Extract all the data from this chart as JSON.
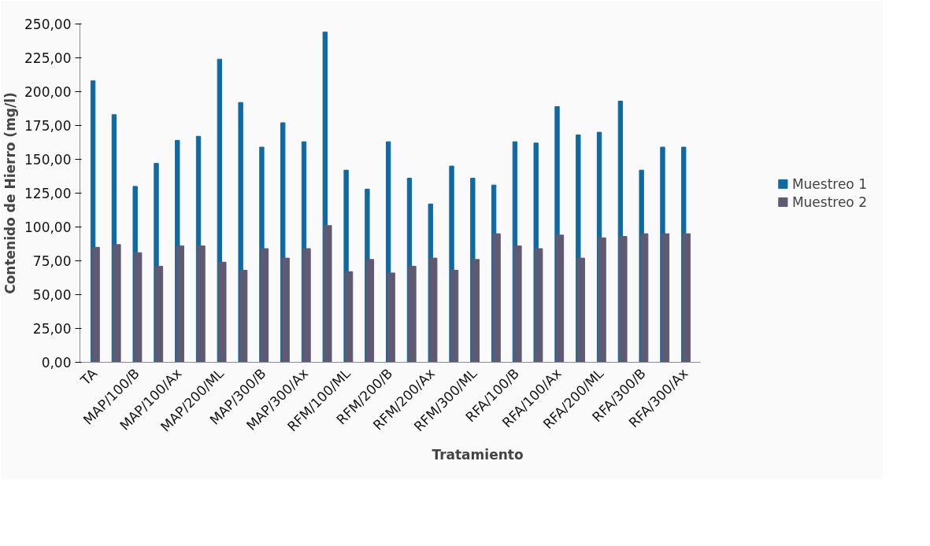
{
  "chart_data": {
    "type": "bar",
    "xlabel": "Tratamiento",
    "ylabel": "Contenido de Hierro (mg/l)",
    "categories": [
      "TA",
      null,
      "MAP/100/B",
      null,
      "MAP/100/Ax",
      null,
      "MAP/200/ML",
      null,
      "MAP/300/B",
      null,
      "MAP/300/Ax",
      null,
      "RFM/100/ML",
      null,
      "RFM/200/B",
      null,
      "RFM/200/Ax",
      null,
      "RFM/300/ML",
      null,
      "RFA/100/B",
      null,
      "RFA/100/Ax",
      null,
      "RFA/200/ML",
      null,
      "RFA/300/B",
      null,
      "RFA/300/Ax"
    ],
    "series": [
      {
        "name": "Muestreo 1",
        "color": "#0f6aa3",
        "values": [
          208,
          183,
          130,
          147,
          164,
          167,
          224,
          192,
          159,
          177,
          163,
          244,
          142,
          128,
          163,
          136,
          117,
          145,
          136,
          131,
          163,
          162,
          189,
          168,
          170,
          193,
          142,
          159,
          159
        ]
      },
      {
        "name": "Muestreo 2",
        "color": "#5f5a72",
        "values": [
          85,
          87,
          81,
          71,
          86,
          86,
          74,
          68,
          84,
          77,
          84,
          101,
          67,
          76,
          66,
          71,
          77,
          68,
          76,
          95,
          86,
          84,
          94,
          77,
          92,
          93,
          95,
          95,
          95
        ]
      }
    ],
    "ylim": [
      0,
      250
    ],
    "yticks": [
      {
        "value": 0,
        "label": "0,00"
      },
      {
        "value": 25,
        "label": "25,00"
      },
      {
        "value": 50,
        "label": "50,00"
      },
      {
        "value": 75,
        "label": "75,00"
      },
      {
        "value": 100,
        "label": "100,00"
      },
      {
        "value": 125,
        "label": "125,00"
      },
      {
        "value": 150,
        "label": "150,00"
      },
      {
        "value": 175,
        "label": "175,00"
      },
      {
        "value": 200,
        "label": "200,00"
      },
      {
        "value": 225,
        "label": "225,00"
      },
      {
        "value": 250,
        "label": "250,00"
      }
    ],
    "grid": false,
    "legend": "right"
  }
}
